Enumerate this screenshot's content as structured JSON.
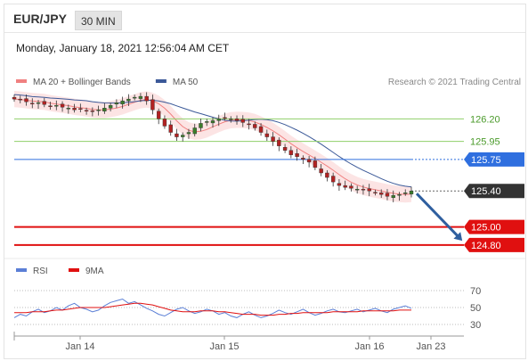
{
  "header": {
    "symbol": "EUR/JPY",
    "timeframe": "30 MIN"
  },
  "timestamp": "Monday, January 18, 2021 12:56:04 AM CET",
  "legend": [
    {
      "label": "MA 20 + Bollinger Bands",
      "color": "#f08080"
    },
    {
      "label": "MA 50",
      "color": "#3b5998"
    }
  ],
  "credit": "Research © 2021 Trading Central",
  "rsi_legend": [
    {
      "label": "RSI",
      "color": "#5b7fd6"
    },
    {
      "label": "9MA",
      "color": "#e01010"
    }
  ],
  "chart_data": {
    "type": "candlestick",
    "x_ticks": [
      "Jan 14",
      "Jan 15",
      "Jan 16",
      "Jan 23"
    ],
    "price_range": [
      124.65,
      126.55
    ],
    "levels": [
      {
        "label": "126.20",
        "value": 126.2,
        "kind": "resistance",
        "color": "#8fcf6a"
      },
      {
        "label": "125.95",
        "value": 125.95,
        "kind": "resistance",
        "color": "#8fcf6a"
      },
      {
        "label": "125.75",
        "value": 125.75,
        "kind": "pivot",
        "color": "#2f6fdf"
      },
      {
        "label": "125.40",
        "value": 125.4,
        "kind": "last",
        "color": "#333333"
      },
      {
        "label": "125.00",
        "value": 125.0,
        "kind": "target",
        "color": "#e01010"
      },
      {
        "label": "124.80",
        "value": 124.8,
        "kind": "target",
        "color": "#e01010"
      }
    ],
    "path_close": [
      126.42,
      126.41,
      126.39,
      126.37,
      126.38,
      126.36,
      126.34,
      126.35,
      126.33,
      126.32,
      126.3,
      126.31,
      126.29,
      126.28,
      126.3,
      126.32,
      126.35,
      126.38,
      126.4,
      126.42,
      126.44,
      126.45,
      126.4,
      126.3,
      126.2,
      126.12,
      126.05,
      126.0,
      126.02,
      126.05,
      126.1,
      126.15,
      126.17,
      126.18,
      126.2,
      126.21,
      126.2,
      126.18,
      126.16,
      126.14,
      126.1,
      126.05,
      126.0,
      125.95,
      125.9,
      125.85,
      125.8,
      125.78,
      125.75,
      125.72,
      125.66,
      125.6,
      125.55,
      125.5,
      125.46,
      125.44,
      125.43,
      125.42,
      125.41,
      125.4,
      125.38,
      125.36,
      125.34,
      125.35,
      125.36,
      125.38,
      125.4
    ],
    "projection": {
      "from": 125.4,
      "to": 124.85,
      "direction": "down"
    },
    "rsi_axis": [
      70,
      50,
      30
    ],
    "rsi": [
      38,
      42,
      40,
      45,
      48,
      44,
      46,
      50,
      47,
      52,
      55,
      50,
      48,
      45,
      47,
      52,
      56,
      58,
      60,
      55,
      57,
      53,
      49,
      46,
      42,
      40,
      44,
      48,
      50,
      46,
      43,
      45,
      48,
      46,
      42,
      44,
      40,
      38,
      42,
      45,
      41,
      38,
      40,
      43,
      47,
      44,
      42,
      45,
      48,
      44,
      41,
      43,
      46,
      48,
      45,
      44,
      46,
      48,
      45,
      47,
      49,
      46,
      44,
      48,
      50,
      52,
      49
    ],
    "rsi_ma": [
      44,
      44,
      44,
      45,
      45,
      45,
      46,
      47,
      47,
      48,
      49,
      50,
      50,
      50,
      50,
      50,
      51,
      52,
      53,
      54,
      55,
      55,
      54,
      53,
      51,
      49,
      47,
      46,
      45,
      45,
      45,
      46,
      46,
      46,
      45,
      45,
      44,
      43,
      42,
      42,
      42,
      41,
      41,
      41,
      42,
      42,
      43,
      43,
      44,
      44,
      44,
      44,
      44,
      45,
      45,
      45,
      45,
      45,
      46,
      46,
      46,
      46,
      46,
      46,
      47,
      47,
      47
    ]
  }
}
